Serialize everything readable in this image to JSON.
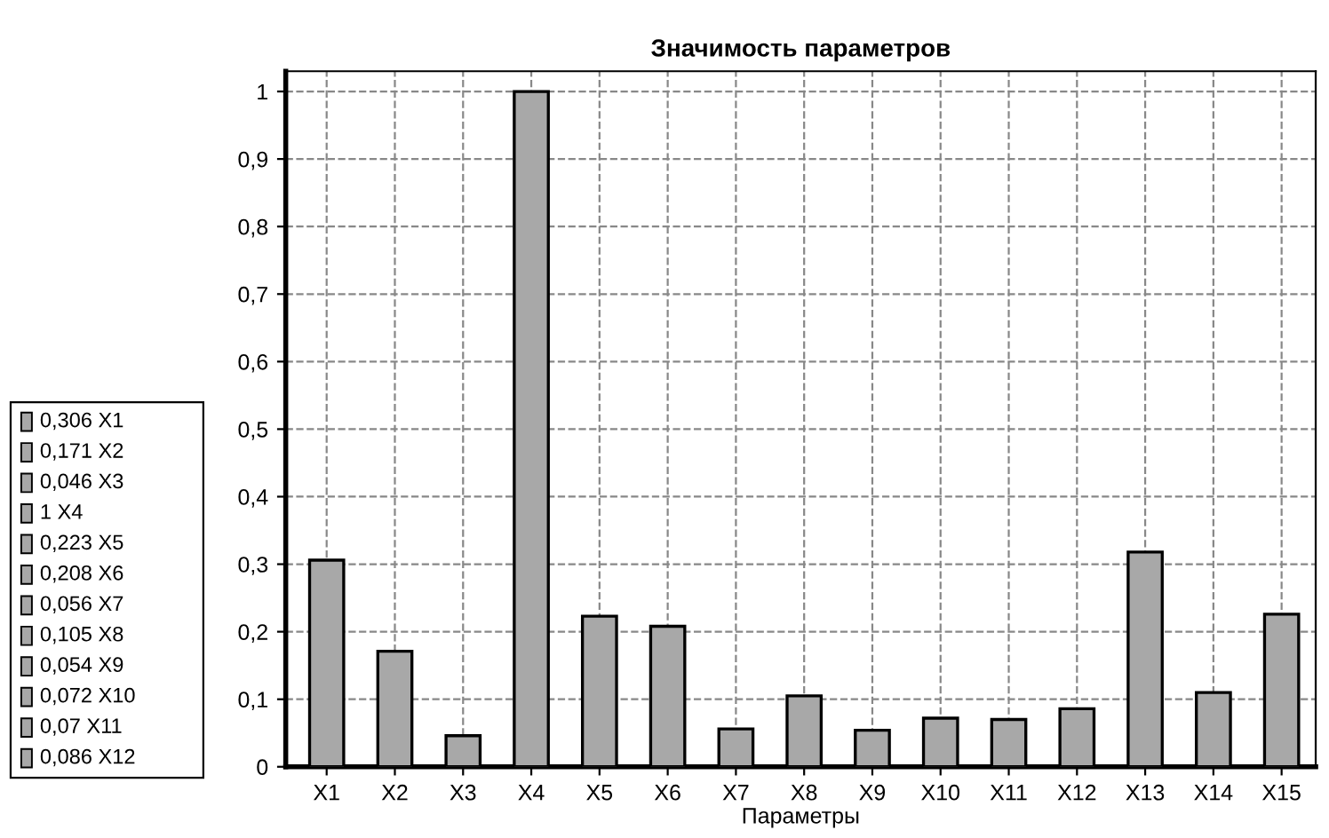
{
  "chart_data": {
    "type": "bar",
    "title": "Значимость параметров",
    "xlabel": "Параметры",
    "categories": [
      "X1",
      "X2",
      "X3",
      "X4",
      "X5",
      "X6",
      "X7",
      "X8",
      "X9",
      "X10",
      "X11",
      "X12",
      "X13",
      "X14",
      "X15"
    ],
    "values": [
      0.306,
      0.171,
      0.046,
      1,
      0.223,
      0.208,
      0.056,
      0.105,
      0.054,
      0.072,
      0.07,
      0.086,
      0.318,
      0.11,
      0.226
    ],
    "color": "#a8a8a8",
    "ylim": [
      0,
      1.03
    ],
    "yticks": [
      0,
      {
        "value": 0.1,
        "label": "0,1"
      },
      {
        "value": 0.2,
        "label": "0,2"
      },
      {
        "value": 0.3,
        "label": "0,3"
      },
      {
        "value": 0.4,
        "label": "0,4"
      },
      {
        "value": 0.5,
        "label": "0,5"
      },
      {
        "value": 0.6,
        "label": "0,6"
      },
      {
        "value": 0.7,
        "label": "0,7"
      },
      {
        "value": 0.8,
        "label": "0,8"
      },
      {
        "value": 0.9,
        "label": "0,9"
      },
      1
    ],
    "grid": true,
    "annotations": [
      "0,306 X1",
      "0,171 X2",
      "0,046 X3",
      "1 X4",
      "0,223 X5",
      "0,208 X6",
      "0,056 X7",
      "0,105 X8",
      "0,054 X9",
      "0,072 X10",
      "0,07 X11",
      "0,086 X12"
    ]
  }
}
